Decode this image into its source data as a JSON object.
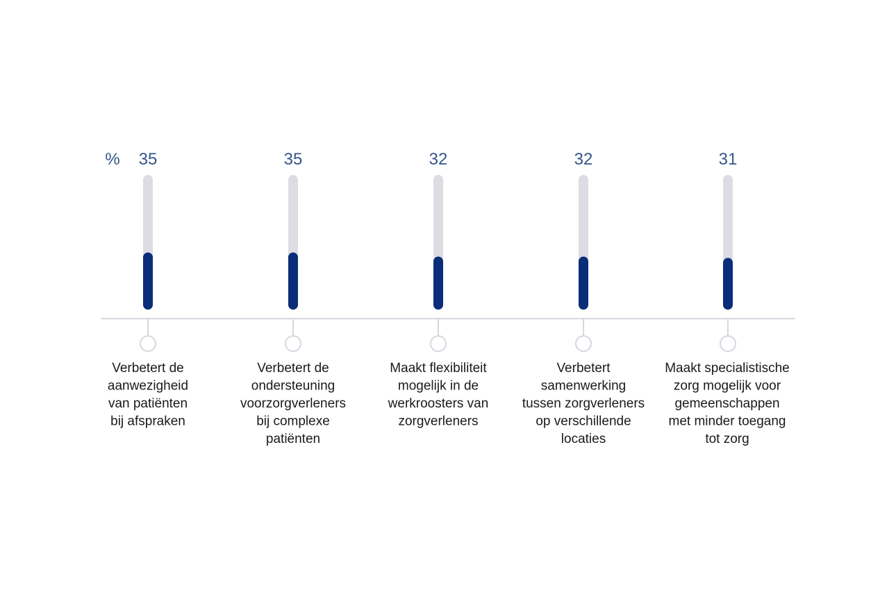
{
  "chart_data": {
    "type": "bar",
    "unit": "%",
    "ylim": [
      0,
      100
    ],
    "grid": false,
    "colors": {
      "fill": "#0a2d79",
      "track": "#dcdde3",
      "axis": "#d6d7df",
      "value_text": "#33568a",
      "label_text": "#1a1a1a"
    },
    "values": [
      35,
      35,
      32,
      32,
      31
    ],
    "categories": [
      [
        "Verbetert de",
        "aanwezigheid",
        "van patiënten",
        "bij afspraken"
      ],
      [
        "Verbetert de",
        "ondersteuning",
        "voorzorgverleners",
        "bij complexe",
        "patiënten"
      ],
      [
        "Maakt flexibiliteit",
        "mogelijk in de",
        "werkroosters van",
        "zorgverleners"
      ],
      [
        "Verbetert",
        "samenwerking",
        "tussen zorgverleners",
        "op verschillende",
        "locaties"
      ],
      [
        "Maakt specialistische",
        "zorg mogelijk voor",
        "gemeenschappen",
        "met minder toegang",
        "tot zorg"
      ]
    ]
  }
}
